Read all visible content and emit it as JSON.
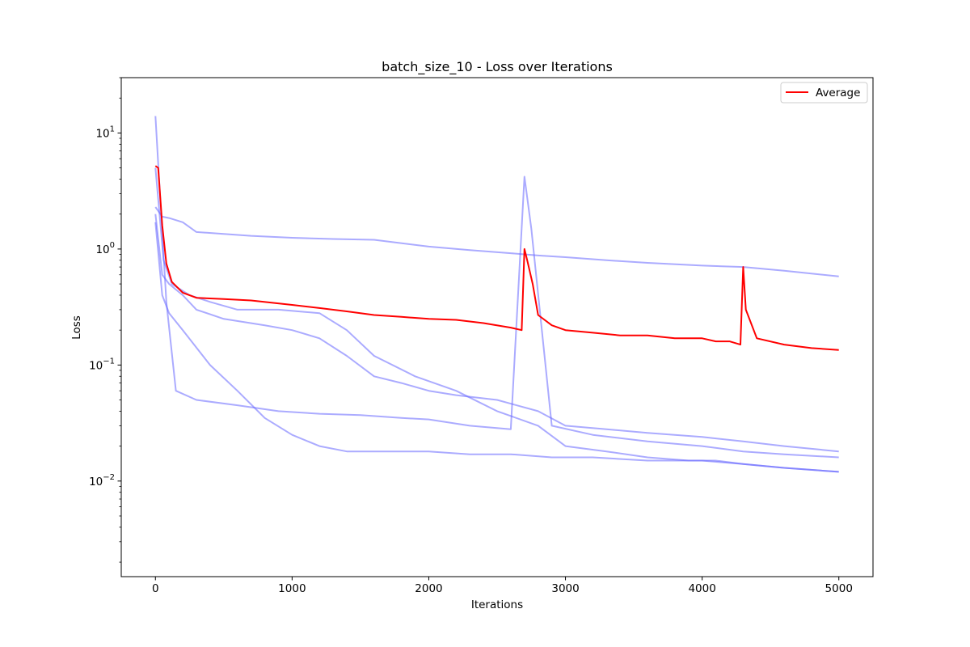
{
  "chart_data": {
    "type": "line",
    "title": "batch_size_10 - Loss over Iterations",
    "xlabel": "Iterations",
    "ylabel": "Loss",
    "xlim": [
      -250,
      5250
    ],
    "ylim": [
      0.0015,
      30
    ],
    "yscale": "log",
    "grid": false,
    "legend_position": "top-right",
    "x_ticks": [
      0,
      1000,
      2000,
      3000,
      4000,
      5000
    ],
    "x_tick_labels": [
      "0",
      "1000",
      "2000",
      "3000",
      "4000",
      "5000"
    ],
    "y_ticks": [
      0.01,
      0.1,
      1,
      10
    ],
    "y_tick_labels": [
      {
        "base": "10",
        "exp": "−2"
      },
      {
        "base": "10",
        "exp": "−1"
      },
      {
        "base": "10",
        "exp": "0"
      },
      {
        "base": "10",
        "exp": "1"
      }
    ],
    "series_colors": {
      "runs": "#6666ff",
      "average": "#ff0000"
    },
    "series": [
      {
        "role": "run",
        "x": [
          0,
          50,
          100,
          200,
          300,
          500,
          700,
          1000,
          1300,
          1600,
          2000,
          2300,
          2600,
          2700,
          2800,
          3000,
          3300,
          3600,
          4000,
          4300,
          4600,
          5000
        ],
        "values": [
          2.3,
          1.9,
          1.85,
          1.7,
          1.4,
          1.35,
          1.3,
          1.25,
          1.22,
          1.2,
          1.05,
          0.98,
          0.92,
          0.9,
          0.88,
          0.85,
          0.8,
          0.76,
          0.72,
          0.7,
          0.65,
          0.58
        ]
      },
      {
        "role": "run",
        "x": [
          0,
          30,
          80,
          150,
          300,
          600,
          900,
          1200,
          1500,
          1800,
          2000,
          2300,
          2600,
          2700,
          2750,
          2900,
          3200,
          3600,
          4000,
          4300,
          4600,
          5000
        ],
        "values": [
          14,
          3.5,
          0.35,
          0.06,
          0.05,
          0.045,
          0.04,
          0.038,
          0.037,
          0.035,
          0.034,
          0.03,
          0.028,
          4.2,
          1.5,
          0.03,
          0.025,
          0.022,
          0.02,
          0.018,
          0.017,
          0.016
        ]
      },
      {
        "role": "run",
        "x": [
          0,
          50,
          100,
          200,
          400,
          600,
          800,
          1000,
          1200,
          1400,
          1700,
          2000,
          2300,
          2600,
          2900,
          3200,
          3600,
          4000,
          4300,
          4600,
          5000
        ],
        "values": [
          1.7,
          0.4,
          0.28,
          0.2,
          0.1,
          0.06,
          0.035,
          0.025,
          0.02,
          0.018,
          0.018,
          0.018,
          0.017,
          0.017,
          0.016,
          0.016,
          0.015,
          0.015,
          0.014,
          0.013,
          0.012
        ]
      },
      {
        "role": "run",
        "x": [
          0,
          50,
          100,
          200,
          300,
          500,
          800,
          1000,
          1200,
          1400,
          1600,
          1800,
          2000,
          2200,
          2500,
          2800,
          3000,
          3300,
          3600,
          4000,
          4300,
          4600,
          5000
        ],
        "values": [
          2.0,
          0.6,
          0.5,
          0.4,
          0.3,
          0.25,
          0.22,
          0.2,
          0.17,
          0.12,
          0.08,
          0.07,
          0.06,
          0.055,
          0.05,
          0.04,
          0.03,
          0.028,
          0.026,
          0.024,
          0.022,
          0.02,
          0.018
        ]
      },
      {
        "role": "run",
        "x": [
          0,
          60,
          120,
          250,
          400,
          600,
          900,
          1200,
          1400,
          1600,
          1900,
          2200,
          2500,
          2800,
          3000,
          3300,
          3600,
          3900,
          4100,
          4300,
          4600,
          5000
        ],
        "values": [
          5.0,
          0.8,
          0.5,
          0.4,
          0.35,
          0.3,
          0.3,
          0.28,
          0.2,
          0.12,
          0.08,
          0.06,
          0.04,
          0.03,
          0.02,
          0.018,
          0.016,
          0.015,
          0.015,
          0.014,
          0.013,
          0.012
        ]
      },
      {
        "role": "average",
        "name": "Average",
        "x": [
          0,
          20,
          50,
          80,
          120,
          200,
          300,
          500,
          700,
          1000,
          1200,
          1400,
          1600,
          1800,
          2000,
          2200,
          2400,
          2600,
          2680,
          2700,
          2720,
          2760,
          2800,
          2900,
          3000,
          3200,
          3400,
          3600,
          3800,
          4000,
          4100,
          4200,
          4280,
          4300,
          4320,
          4400,
          4600,
          4800,
          5000
        ],
        "values": [
          5.2,
          5.0,
          1.6,
          0.75,
          0.52,
          0.42,
          0.38,
          0.37,
          0.36,
          0.33,
          0.31,
          0.29,
          0.27,
          0.26,
          0.25,
          0.245,
          0.23,
          0.21,
          0.2,
          1.0,
          0.8,
          0.5,
          0.27,
          0.22,
          0.2,
          0.19,
          0.18,
          0.18,
          0.17,
          0.17,
          0.16,
          0.16,
          0.15,
          0.7,
          0.3,
          0.17,
          0.15,
          0.14,
          0.135
        ]
      }
    ],
    "legend": [
      {
        "label": "Average",
        "color": "#ff0000"
      }
    ]
  }
}
